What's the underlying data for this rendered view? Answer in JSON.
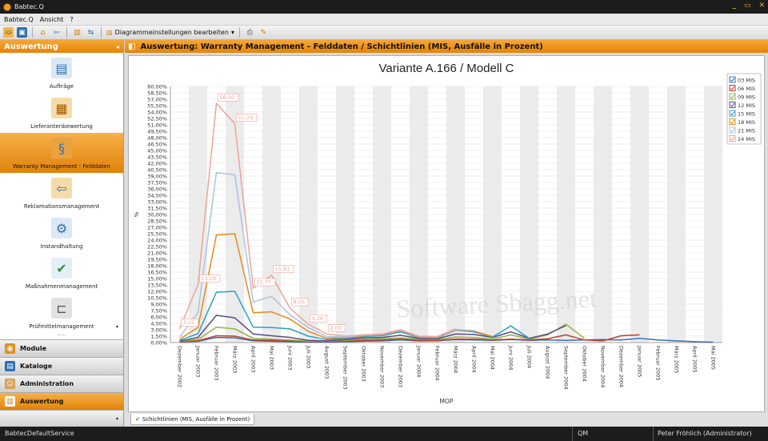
{
  "window": {
    "title": "Babtec.Q"
  },
  "menu": [
    "Babtec.Q",
    "Ansicht",
    "?"
  ],
  "toolbar": {
    "settings_label": "Diagrammeinstellungen bearbeiten"
  },
  "sidebar": {
    "title": "Auswertung",
    "items": [
      {
        "label": "Aufträge",
        "icon": "documents-icon"
      },
      {
        "label": "Lieferantenbewertung",
        "icon": "package-icon"
      },
      {
        "label": "Warranty Management - Felddaten",
        "icon": "warranty-icon"
      },
      {
        "label": "Reklamationsmanagement",
        "icon": "return-arrow-icon"
      },
      {
        "label": "Instandhaltung",
        "icon": "wrench-gear-icon"
      },
      {
        "label": "Maßnahmenmanagement",
        "icon": "measures-icon"
      },
      {
        "label": "Prüfmittelmanagement",
        "icon": "caliper-icon"
      }
    ],
    "sections": [
      {
        "label": "Module"
      },
      {
        "label": "Kataloge"
      },
      {
        "label": "Administration"
      },
      {
        "label": "Auswertung"
      }
    ]
  },
  "content": {
    "header": "Auswertung: Warranty Management - Felddaten / Schichtlinien (MIS, Ausfälle in Prozent)",
    "tab_label": "Schichtlinien (MIS, Ausfälle in Prozent)"
  },
  "status": {
    "service": "BabtecDefaultService",
    "module": "QM",
    "user": "Peter Fröhlich (Administrator)"
  },
  "chart_data": {
    "type": "line",
    "title": "Variante A.166 / Modell C",
    "xlabel": "MOP",
    "ylabel": "%",
    "ylim": [
      0,
      60
    ],
    "ytick_step": 1.5,
    "grid": true,
    "legend_position": "right",
    "categories": [
      "Dezember 2002",
      "Januar 2003",
      "Februar 2003",
      "März 2003",
      "April 2003",
      "Mai 2003",
      "Juni 2003",
      "Juli 2003",
      "August 2003",
      "September 2003",
      "Oktober 2003",
      "November 2003",
      "Dezember 2003",
      "Januar 2004",
      "Februar 2004",
      "März 2004",
      "April 2004",
      "Mai 2004",
      "Juni 2004",
      "Juli 2004",
      "August 2004",
      "September 2004",
      "Oktober 2004",
      "November 2004",
      "Dezember 2004",
      "Januar 2005",
      "Februar 2005",
      "März 2005",
      "April 2005",
      "Mai 2005"
    ],
    "series": [
      {
        "name": "03 MIS",
        "color": "#3a6fb0",
        "values": [
          0.1,
          0.3,
          1.2,
          1.1,
          0.4,
          0.3,
          0.2,
          0.1,
          0.1,
          0.2,
          0.3,
          0.4,
          0.6,
          0.4,
          0.4,
          0.7,
          0.6,
          0.5,
          0.7,
          0.5,
          0.6,
          0.5,
          0.6,
          0.7,
          0.6,
          1.0,
          0.6,
          0.4,
          0.2,
          0.1
        ]
      },
      {
        "name": "06 MIS",
        "color": "#c0392b",
        "values": [
          0.1,
          0.4,
          1.6,
          1.5,
          0.6,
          0.5,
          0.4,
          0.2,
          0.2,
          0.3,
          0.5,
          0.6,
          0.8,
          0.5,
          0.5,
          0.8,
          0.8,
          0.6,
          0.8,
          0.6,
          0.9,
          1.8,
          0.6,
          0.4,
          1.6,
          1.8,
          null,
          null,
          null,
          null
        ]
      },
      {
        "name": "09 MIS",
        "color": "#8fb53c",
        "values": [
          0.2,
          0.7,
          3.6,
          3.2,
          1.0,
          0.8,
          0.6,
          0.3,
          0.3,
          0.5,
          0.8,
          0.9,
          1.1,
          0.8,
          0.7,
          1.3,
          1.2,
          0.8,
          1.8,
          0.8,
          1.8,
          4.3,
          1.0,
          null,
          null,
          null,
          null,
          null,
          null,
          null
        ]
      },
      {
        "name": "12 MIS",
        "color": "#5a4a8a",
        "values": [
          0.3,
          1.2,
          6.4,
          5.8,
          2.0,
          1.6,
          1.2,
          0.5,
          0.4,
          0.7,
          1.1,
          1.2,
          1.7,
          1.0,
          0.9,
          2.0,
          1.9,
          1.2,
          2.5,
          1.0,
          2.0,
          4.0,
          null,
          null,
          null,
          null,
          null,
          null,
          null,
          null
        ]
      },
      {
        "name": "15 MIS",
        "color": "#2aa0c8",
        "values": [
          0.5,
          2.1,
          11.8,
          12.0,
          3.6,
          3.5,
          3.2,
          1.5,
          0.7,
          1.0,
          1.4,
          1.6,
          2.5,
          1.2,
          1.1,
          2.9,
          2.5,
          1.3,
          3.9,
          1.0,
          null,
          null,
          null,
          null,
          null,
          null,
          null,
          null,
          null,
          null
        ]
      },
      {
        "name": "18 MIS",
        "color": "#e8891a",
        "values": [
          0.8,
          3.5,
          25.2,
          25.5,
          7.0,
          7.2,
          5.5,
          2.6,
          1.0,
          1.2,
          1.6,
          1.8,
          2.8,
          1.3,
          1.2,
          3.0,
          2.7,
          1.4,
          null,
          null,
          null,
          null,
          null,
          null,
          null,
          null,
          null,
          null,
          null,
          null
        ]
      },
      {
        "name": "21 MIS",
        "color": "#a8c4e4",
        "values": [
          1.3,
          7.0,
          39.8,
          39.3,
          9.5,
          10.8,
          6.5,
          3.5,
          1.4,
          1.3,
          1.7,
          1.9,
          2.9,
          1.4,
          1.3,
          3.1,
          2.8,
          null,
          null,
          null,
          null,
          null,
          null,
          null,
          null,
          null,
          null,
          null,
          null,
          null
        ]
      },
      {
        "name": "24 MIS",
        "color": "#eea39a",
        "values": [
          3.25,
          13.58,
          56.0,
          51.29,
          12.75,
          15.81,
          8.05,
          4.26,
          2.0,
          1.5,
          1.8,
          2.0,
          3.0,
          1.5,
          1.4,
          3.2,
          null,
          null,
          null,
          null,
          null,
          null,
          null,
          null,
          null,
          null,
          null,
          null,
          null,
          null
        ]
      }
    ],
    "data_labels": [
      {
        "series": 7,
        "index": 0,
        "text": "3,25"
      },
      {
        "series": 7,
        "index": 1,
        "text": "13,58"
      },
      {
        "series": 7,
        "index": 2,
        "text": "56,00"
      },
      {
        "series": 7,
        "index": 3,
        "text": "51,29"
      },
      {
        "series": 7,
        "index": 4,
        "text": "12,75"
      },
      {
        "series": 7,
        "index": 5,
        "text": "15,81"
      },
      {
        "series": 7,
        "index": 6,
        "text": "8,05"
      },
      {
        "series": 7,
        "index": 7,
        "text": "4,26"
      },
      {
        "series": 7,
        "index": 8,
        "text": "2,00"
      }
    ],
    "watermark": "Software Sbagg.net"
  }
}
